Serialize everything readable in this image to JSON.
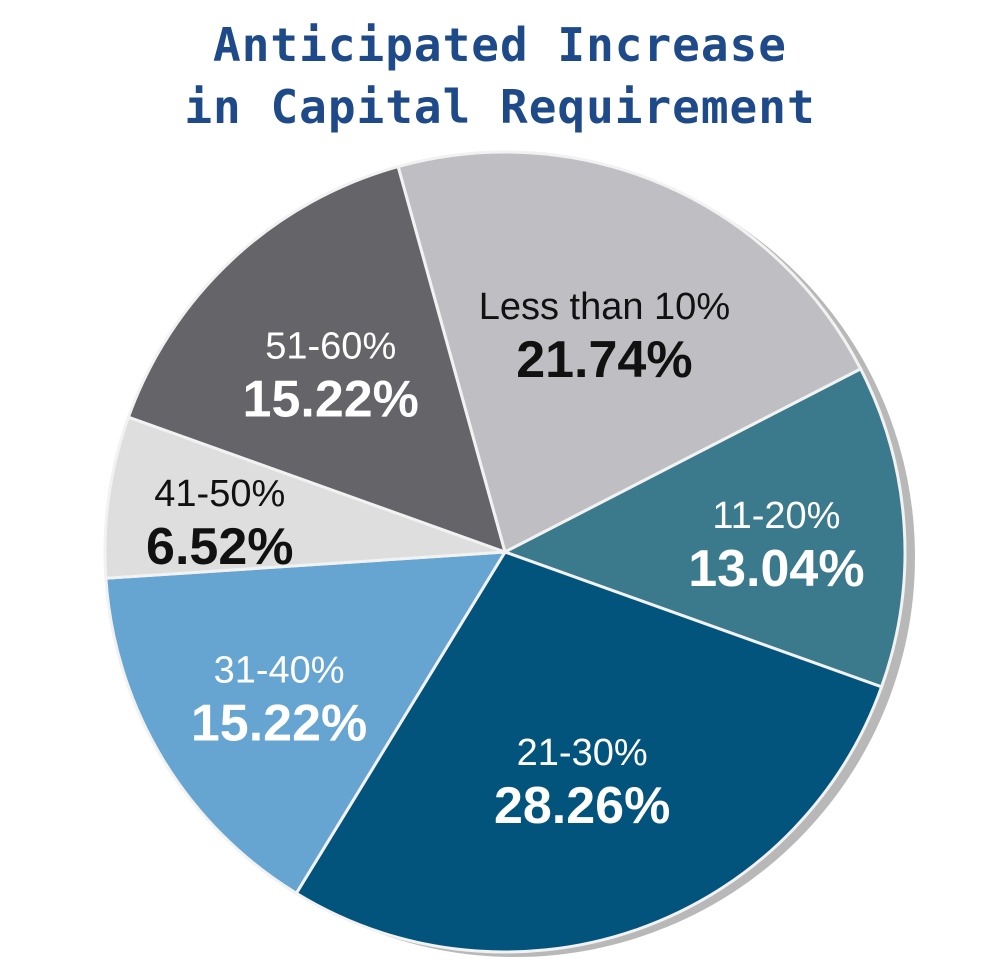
{
  "chart_data": {
    "type": "pie",
    "title_lines": [
      "Anticipated Increase",
      "in Capital Requirement"
    ],
    "categories": [
      "Less than 10%",
      "11-20%",
      "21-30%",
      "31-40%",
      "41-50%",
      "51-60%"
    ],
    "values": [
      21.74,
      13.04,
      28.26,
      15.22,
      6.52,
      15.22
    ],
    "value_labels": [
      "21.74%",
      "13.04%",
      "28.26%",
      "15.22%",
      "6.52%",
      "15.22%"
    ],
    "colors": [
      "#bfbfc3",
      "#3a7a8c",
      "#03547c",
      "#66a4d2",
      "#dededf",
      "#646469"
    ],
    "label_colors": [
      "#111111",
      "#ffffff",
      "#ffffff",
      "#ffffff",
      "#111111",
      "#ffffff"
    ],
    "start_angle_deg": -15.5,
    "direction": "clockwise",
    "title_color": "#1f4a8a",
    "legend": "none"
  }
}
